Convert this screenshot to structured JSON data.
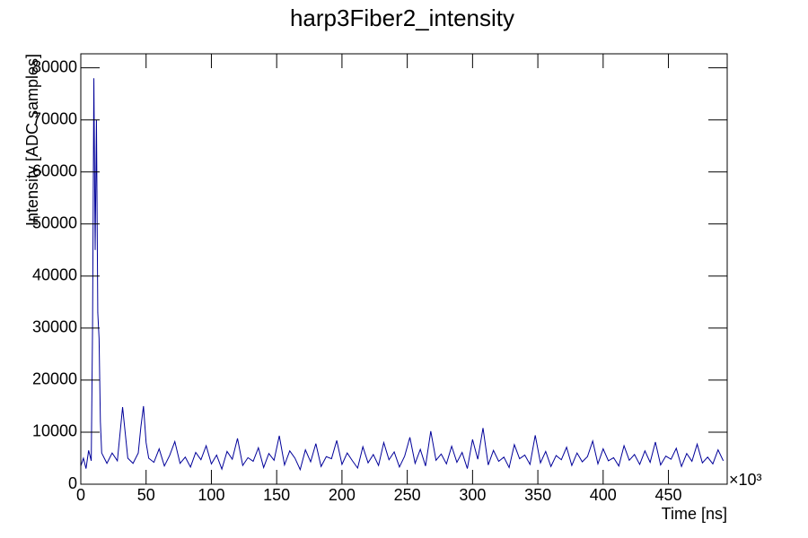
{
  "chart_data": {
    "type": "line",
    "title": "harp3Fiber2_intensity",
    "x_label": "Time [ns]",
    "y_label": "Intensity [ADC samples]",
    "x_multiplier": "×10³",
    "color": "#000099",
    "xlim": [
      0,
      495
    ],
    "xticks": [
      0,
      50,
      100,
      150,
      200,
      250,
      300,
      350,
      400,
      450
    ],
    "ylim": [
      0,
      82700
    ],
    "yticks": [
      0,
      10000,
      20000,
      30000,
      40000,
      50000,
      60000,
      70000,
      80000
    ],
    "x": [
      0,
      2,
      4,
      6,
      8,
      9,
      10,
      11,
      12,
      13,
      14,
      15,
      16,
      18,
      20,
      24,
      28,
      32,
      36,
      40,
      44,
      46,
      48,
      50,
      52,
      56,
      60,
      64,
      68,
      72,
      76,
      80,
      84,
      88,
      92,
      96,
      100,
      104,
      108,
      112,
      116,
      120,
      124,
      128,
      132,
      136,
      140,
      144,
      148,
      152,
      156,
      160,
      164,
      168,
      172,
      176,
      180,
      184,
      188,
      192,
      196,
      200,
      204,
      208,
      212,
      216,
      220,
      224,
      228,
      232,
      236,
      240,
      244,
      248,
      252,
      256,
      260,
      264,
      268,
      272,
      276,
      280,
      284,
      288,
      292,
      296,
      300,
      304,
      308,
      312,
      316,
      320,
      324,
      328,
      332,
      336,
      340,
      344,
      348,
      352,
      356,
      360,
      364,
      368,
      372,
      376,
      380,
      384,
      388,
      392,
      396,
      400,
      404,
      408,
      412,
      416,
      420,
      424,
      428,
      432,
      436,
      440,
      444,
      448,
      452,
      456,
      460,
      464,
      468,
      472,
      476,
      480,
      484,
      488,
      492
    ],
    "values": [
      3500,
      5000,
      3000,
      6500,
      4500,
      30000,
      78000,
      45000,
      70000,
      33000,
      28000,
      12000,
      6000,
      5000,
      4000,
      6000,
      4500,
      14800,
      5000,
      4000,
      6000,
      11000,
      15000,
      8000,
      5000,
      4200,
      6800,
      3500,
      5500,
      8200,
      4000,
      5200,
      3300,
      6100,
      4700,
      7400,
      3900,
      5600,
      2900,
      6300,
      4800,
      8800,
      3600,
      5100,
      4400,
      7000,
      3200,
      5900,
      4600,
      9300,
      3700,
      6400,
      5000,
      2800,
      6600,
      4300,
      7800,
      3400,
      5300,
      4900,
      8400,
      3800,
      6000,
      4500,
      3100,
      7200,
      4100,
      5700,
      3600,
      8000,
      4700,
      6200,
      3300,
      5400,
      9000,
      4000,
      6700,
      3500,
      10200,
      4600,
      5800,
      3900,
      7300,
      4200,
      6100,
      3000,
      8600,
      4800,
      10800,
      3700,
      6500,
      4400,
      5200,
      3200,
      7600,
      4900,
      5600,
      3800,
      9400,
      4100,
      6300,
      3400,
      5500,
      4700,
      7100,
      3600,
      6000,
      4300,
      5300,
      8300,
      3900,
      6800,
      4500,
      5100,
      3500,
      7400,
      4600,
      5700,
      3800,
      6400,
      4200,
      8100,
      3700,
      5400,
      4800,
      6900,
      3400,
      5900,
      4400,
      7700,
      4100,
      5200,
      3900,
      6600,
      4500
    ]
  }
}
